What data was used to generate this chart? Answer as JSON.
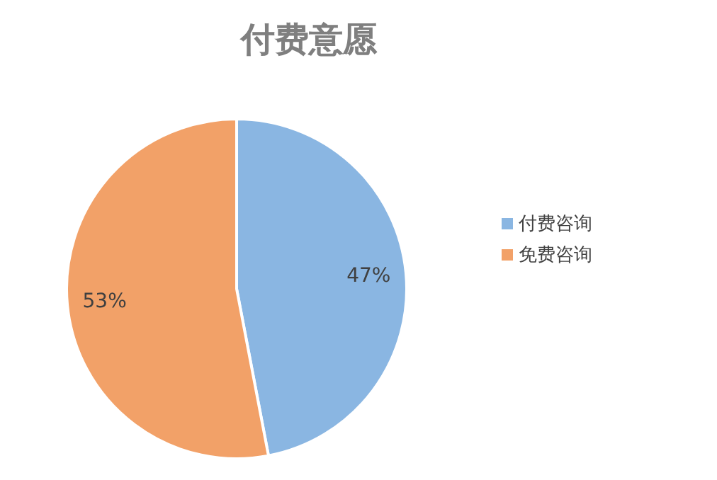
{
  "chart_data": {
    "type": "pie",
    "title": "付费意愿",
    "categories": [
      "付费咨询",
      "免费咨询"
    ],
    "values": [
      47,
      53
    ],
    "colors": [
      "#8ab6e2",
      "#f2a168"
    ],
    "value_labels": [
      "47%",
      "53%"
    ],
    "legend": "right"
  }
}
